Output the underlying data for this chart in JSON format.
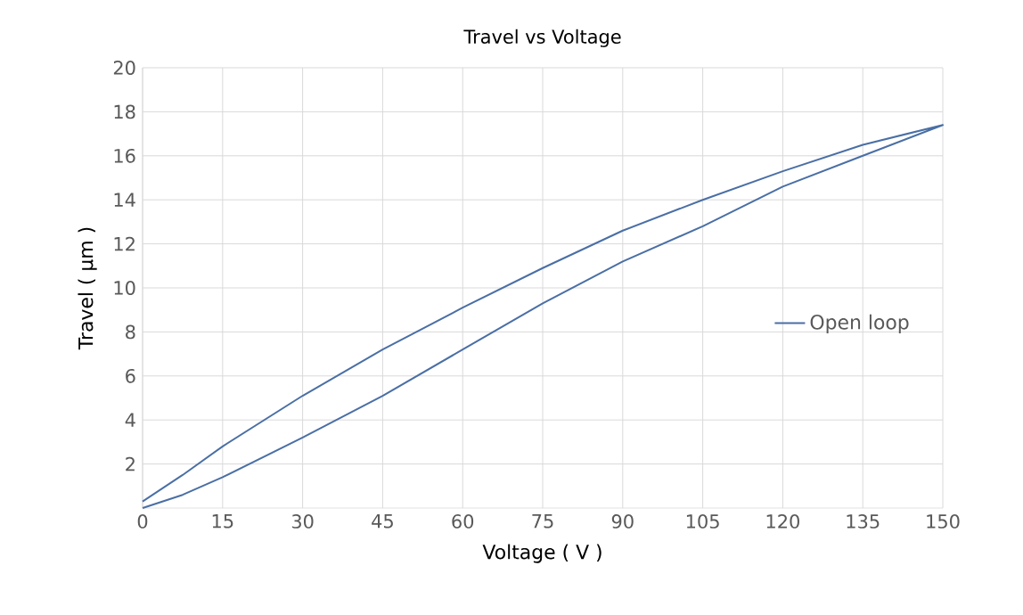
{
  "chart_data": {
    "type": "line",
    "title": "Travel vs Voltage",
    "xlabel": "Voltage ( V )",
    "ylabel": "Travel ( μm )",
    "x": [
      0,
      7.5,
      15,
      30,
      45,
      60,
      75,
      90,
      105,
      120,
      135,
      150,
      135,
      120,
      105,
      90,
      75,
      60,
      45,
      30,
      15,
      7.5,
      0
    ],
    "series": [
      {
        "name": "Open loop",
        "color": "#4a6fa5",
        "values": [
          0,
          0.6,
          1.4,
          3.2,
          5.1,
          7.2,
          9.3,
          11.2,
          12.8,
          14.6,
          16.0,
          17.4,
          16.5,
          15.3,
          14.0,
          12.6,
          10.9,
          9.1,
          7.2,
          5.1,
          2.8,
          1.5,
          0.3
        ]
      }
    ],
    "xlim": [
      0,
      150
    ],
    "xticks": [
      0,
      15,
      30,
      45,
      60,
      75,
      90,
      105,
      120,
      135,
      150
    ],
    "ylim": [
      0,
      20
    ],
    "yticks": [
      2,
      4,
      6,
      8,
      10,
      12,
      14,
      16,
      18,
      20
    ],
    "grid": true,
    "legend": "right",
    "marker": "none",
    "line_style": "solid"
  }
}
